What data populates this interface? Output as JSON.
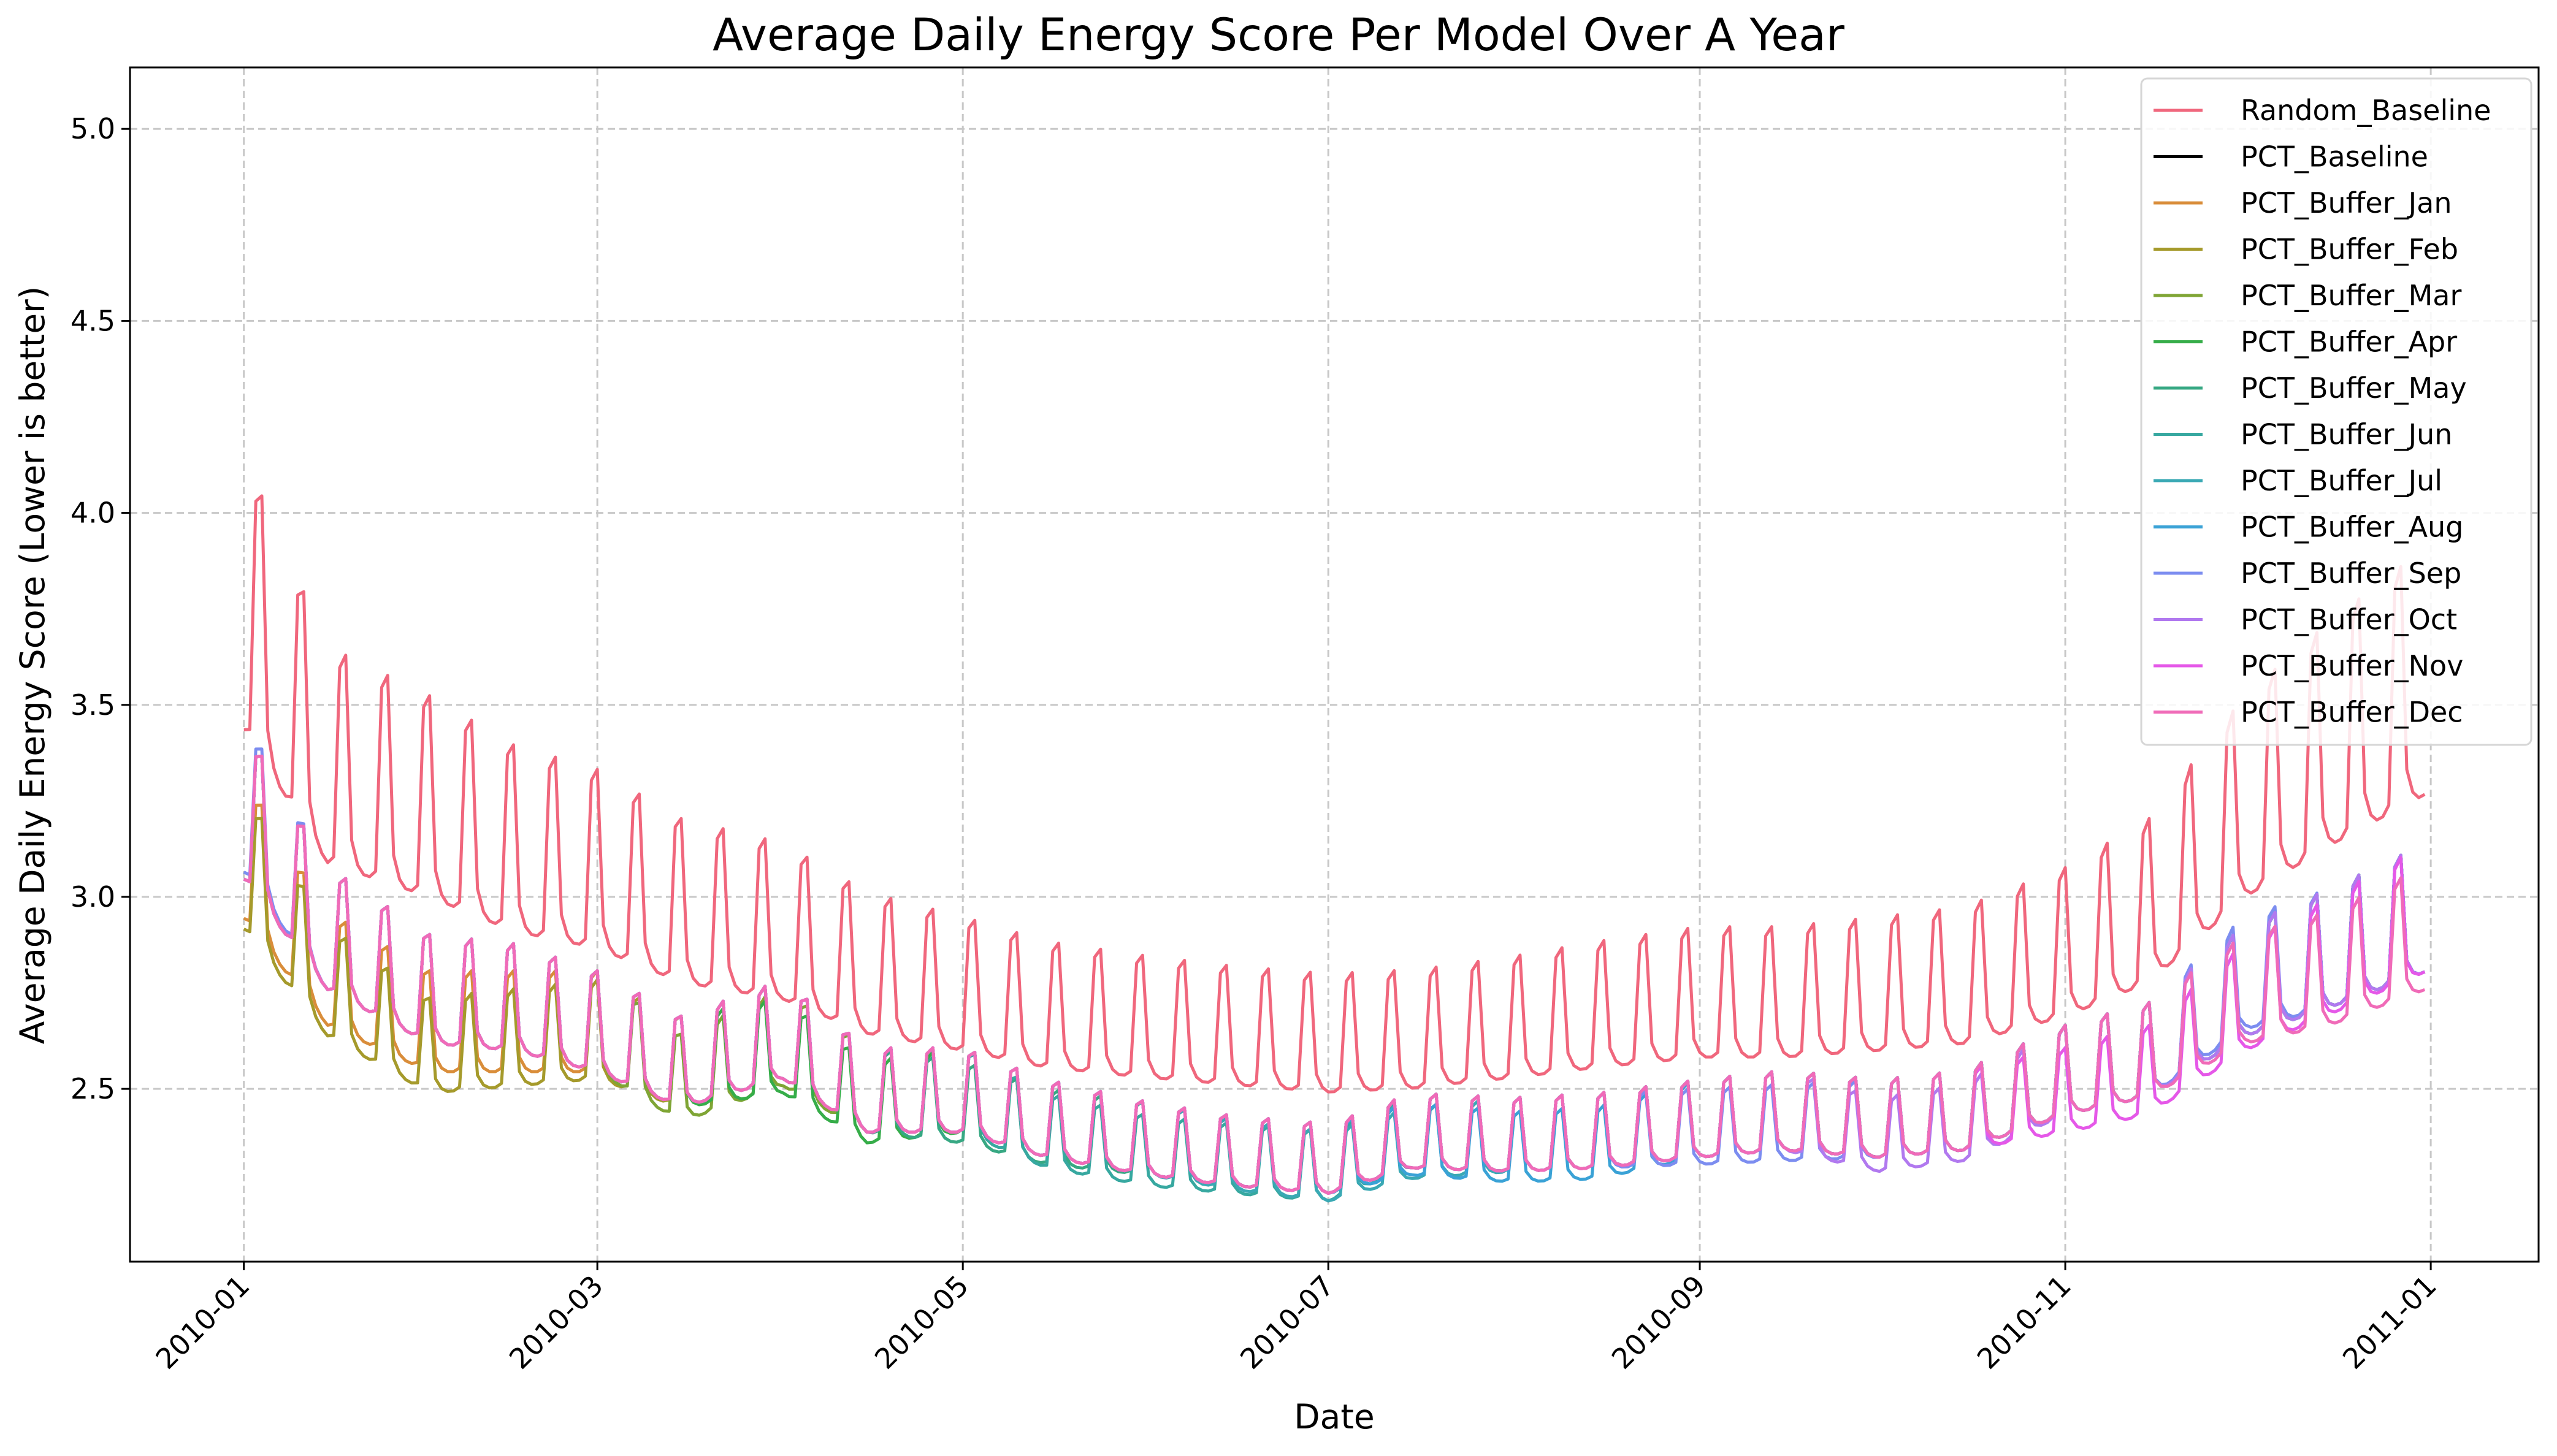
{
  "chart_data": {
    "type": "line",
    "title": "Average Daily Energy Score Per Model Over A Year",
    "xlabel": "Date",
    "ylabel": "Average Daily Energy Score (Lower is better)",
    "xlim": [
      "2009-12-13",
      "2011-01-19"
    ],
    "ylim": [
      2.05,
      5.16
    ],
    "x_ticks": [
      "2010-01-01",
      "2010-03-01",
      "2010-05-01",
      "2010-07-01",
      "2010-09-01",
      "2010-11-01",
      "2011-01-01"
    ],
    "x_tick_labels": [
      "2010-01",
      "2010-03",
      "2010-05",
      "2010-07",
      "2010-09",
      "2010-11",
      "2011-01"
    ],
    "y_ticks": [
      2.5,
      3.0,
      3.5,
      4.0,
      4.5,
      5.0
    ],
    "y_tick_labels": [
      "2.5",
      "3.0",
      "3.5",
      "4.0",
      "4.5",
      "5.0"
    ],
    "grid": true,
    "legend_position": "top-right",
    "x_dates": [
      "2010-01-01",
      "2010-01-15",
      "2010-02-01",
      "2010-02-15",
      "2010-03-01",
      "2010-03-15",
      "2010-04-01",
      "2010-04-15",
      "2010-05-01",
      "2010-05-15",
      "2010-06-01",
      "2010-06-15",
      "2010-07-01",
      "2010-07-15",
      "2010-08-01",
      "2010-08-15",
      "2010-09-01",
      "2010-09-15",
      "2010-10-01",
      "2010-10-15",
      "2010-11-01",
      "2010-11-15",
      "2010-12-01",
      "2010-12-15",
      "2010-12-31"
    ],
    "series": [
      {
        "name": "Random_Baseline",
        "color": "#f0677d",
        "values": [
          3.64,
          3.25,
          3.15,
          3.05,
          3.0,
          2.9,
          2.85,
          2.75,
          2.7,
          2.65,
          2.62,
          2.6,
          2.58,
          2.59,
          2.62,
          2.65,
          2.68,
          2.68,
          2.7,
          2.72,
          2.8,
          2.9,
          3.15,
          3.3,
          3.45
        ]
      },
      {
        "name": "PCT_Baseline",
        "color": "#000000",
        "values": [
          3.16,
          2.85,
          2.7,
          2.68,
          2.62,
          2.52,
          2.6,
          2.45,
          2.45,
          2.38,
          2.33,
          2.3,
          2.28,
          2.35,
          2.34,
          2.35,
          2.38,
          2.4,
          2.38,
          2.4,
          2.5,
          2.55,
          2.72,
          2.8,
          2.9
        ]
      },
      {
        "name": "PCT_Buffer_Jan",
        "color": "#d98d3a",
        "values": [
          3.05,
          2.75,
          2.62,
          2.62,
          2.62,
          2.52,
          2.6,
          2.45,
          2.45,
          2.38,
          2.33,
          2.3,
          2.28,
          2.35,
          2.34,
          2.35,
          2.38,
          2.4,
          2.38,
          2.4,
          2.5,
          2.55,
          2.72,
          2.8,
          2.9
        ]
      },
      {
        "name": "PCT_Buffer_Feb",
        "color": "#a59a2b",
        "values": [
          3.02,
          2.72,
          2.56,
          2.58,
          2.6,
          2.52,
          2.6,
          2.45,
          2.45,
          2.38,
          2.33,
          2.3,
          2.28,
          2.35,
          2.34,
          2.35,
          2.38,
          2.4,
          2.38,
          2.4,
          2.5,
          2.55,
          2.72,
          2.8,
          2.9
        ]
      },
      {
        "name": "PCT_Buffer_Mar",
        "color": "#7fa535",
        "values": [
          3.16,
          2.85,
          2.7,
          2.68,
          2.62,
          2.48,
          2.58,
          2.45,
          2.45,
          2.38,
          2.33,
          2.3,
          2.28,
          2.35,
          2.34,
          2.35,
          2.38,
          2.4,
          2.38,
          2.4,
          2.5,
          2.55,
          2.72,
          2.8,
          2.9
        ]
      },
      {
        "name": "PCT_Buffer_Apr",
        "color": "#36ad49",
        "values": [
          3.16,
          2.85,
          2.7,
          2.68,
          2.62,
          2.52,
          2.56,
          2.42,
          2.45,
          2.38,
          2.33,
          2.3,
          2.28,
          2.35,
          2.34,
          2.35,
          2.38,
          2.4,
          2.38,
          2.4,
          2.5,
          2.55,
          2.72,
          2.8,
          2.9
        ]
      },
      {
        "name": "PCT_Buffer_May",
        "color": "#37a883",
        "values": [
          3.16,
          2.85,
          2.7,
          2.68,
          2.62,
          2.52,
          2.6,
          2.45,
          2.42,
          2.36,
          2.33,
          2.3,
          2.28,
          2.35,
          2.34,
          2.35,
          2.38,
          2.4,
          2.38,
          2.4,
          2.5,
          2.55,
          2.72,
          2.8,
          2.9
        ]
      },
      {
        "name": "PCT_Buffer_Jun",
        "color": "#37a8a0",
        "values": [
          3.16,
          2.85,
          2.7,
          2.68,
          2.62,
          2.52,
          2.6,
          2.45,
          2.45,
          2.35,
          2.3,
          2.28,
          2.26,
          2.35,
          2.34,
          2.35,
          2.38,
          2.4,
          2.38,
          2.4,
          2.5,
          2.55,
          2.72,
          2.8,
          2.9
        ]
      },
      {
        "name": "PCT_Buffer_Jul",
        "color": "#3aa9b4",
        "values": [
          3.16,
          2.85,
          2.7,
          2.68,
          2.62,
          2.52,
          2.6,
          2.45,
          2.45,
          2.38,
          2.33,
          2.29,
          2.26,
          2.32,
          2.34,
          2.35,
          2.38,
          2.4,
          2.38,
          2.4,
          2.5,
          2.55,
          2.72,
          2.8,
          2.9
        ]
      },
      {
        "name": "PCT_Buffer_Aug",
        "color": "#3aa2d6",
        "values": [
          3.16,
          2.85,
          2.7,
          2.68,
          2.62,
          2.52,
          2.6,
          2.45,
          2.45,
          2.38,
          2.33,
          2.3,
          2.28,
          2.33,
          2.31,
          2.32,
          2.38,
          2.4,
          2.38,
          2.4,
          2.5,
          2.55,
          2.72,
          2.8,
          2.9
        ]
      },
      {
        "name": "PCT_Buffer_Sep",
        "color": "#7c8df0",
        "values": [
          3.18,
          2.85,
          2.7,
          2.68,
          2.62,
          2.52,
          2.6,
          2.45,
          2.45,
          2.38,
          2.33,
          2.3,
          2.28,
          2.35,
          2.34,
          2.35,
          2.36,
          2.37,
          2.38,
          2.4,
          2.5,
          2.55,
          2.74,
          2.8,
          2.9
        ]
      },
      {
        "name": "PCT_Buffer_Oct",
        "color": "#b179ef",
        "values": [
          3.16,
          2.85,
          2.7,
          2.68,
          2.62,
          2.52,
          2.6,
          2.45,
          2.45,
          2.38,
          2.33,
          2.3,
          2.28,
          2.35,
          2.34,
          2.35,
          2.38,
          2.4,
          2.34,
          2.37,
          2.5,
          2.55,
          2.72,
          2.8,
          2.9
        ]
      },
      {
        "name": "PCT_Buffer_Nov",
        "color": "#e558e8",
        "values": [
          3.16,
          2.85,
          2.7,
          2.68,
          2.62,
          2.52,
          2.6,
          2.45,
          2.45,
          2.38,
          2.33,
          2.3,
          2.28,
          2.35,
          2.34,
          2.35,
          2.38,
          2.4,
          2.38,
          2.4,
          2.45,
          2.5,
          2.68,
          2.78,
          2.9
        ]
      },
      {
        "name": "PCT_Buffer_Dec",
        "color": "#f06bb8",
        "values": [
          3.16,
          2.85,
          2.7,
          2.68,
          2.62,
          2.52,
          2.6,
          2.45,
          2.45,
          2.38,
          2.33,
          2.3,
          2.28,
          2.35,
          2.34,
          2.35,
          2.38,
          2.4,
          2.38,
          2.4,
          2.5,
          2.55,
          2.7,
          2.75,
          2.85
        ]
      }
    ]
  }
}
